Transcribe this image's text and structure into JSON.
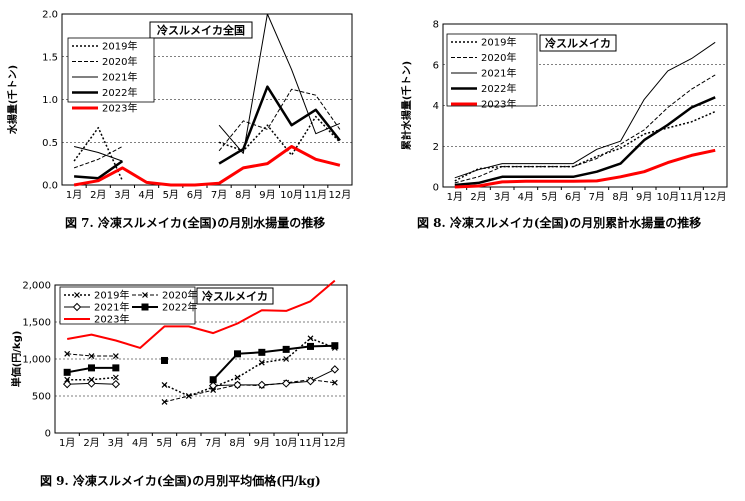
{
  "chart_data": [
    {
      "type": "line",
      "caption": "図 7. 冷凍スルメイカ(全国)の月別水揚量の推移",
      "title": "冷スルメイカ全国",
      "ylabel": "水揚量(千トン)",
      "categories": [
        "1月",
        "2月",
        "3月",
        "4月",
        "5月",
        "6月",
        "7月",
        "8月",
        "9月",
        "10月",
        "11月",
        "12月"
      ],
      "ylim": [
        0,
        2.0
      ],
      "yticks": [
        "0.0",
        "0.5",
        "1.0",
        "1.5",
        "2.0"
      ],
      "ytick_values": [
        0,
        0.5,
        1.0,
        1.5,
        2.0
      ],
      "series": [
        {
          "name": "2019年",
          "values": [
            0.28,
            0.67,
            0.05,
            null,
            null,
            null,
            0.5,
            0.4,
            0.7,
            0.35,
            0.8,
            0.5
          ],
          "color": "#000000",
          "width": 1.5,
          "dash": "2,2"
        },
        {
          "name": "2020年",
          "values": [
            0.2,
            0.3,
            0.45,
            null,
            null,
            null,
            0.4,
            0.75,
            0.65,
            1.12,
            1.05,
            0.65
          ],
          "color": "#000000",
          "width": 1,
          "dash": "4,2"
        },
        {
          "name": "2021年",
          "values": [
            0.45,
            0.38,
            0.28,
            null,
            null,
            null,
            0.7,
            0.37,
            2.0,
            1.35,
            0.6,
            0.72
          ],
          "color": "#000000",
          "width": 1,
          "dash": ""
        },
        {
          "name": "2022年",
          "values": [
            0.1,
            0.08,
            0.28,
            null,
            null,
            null,
            0.25,
            0.42,
            1.15,
            0.7,
            0.88,
            0.52
          ],
          "color": "#000000",
          "width": 2.5,
          "dash": ""
        },
        {
          "name": "2023年",
          "values": [
            0.0,
            0.05,
            0.2,
            0.03,
            0.0,
            0.0,
            0.02,
            0.2,
            0.25,
            0.45,
            0.3,
            0.23
          ],
          "color": "#ff0000",
          "width": 3,
          "dash": ""
        }
      ]
    },
    {
      "type": "line",
      "caption": "図 8. 冷凍スルメイカ(全国)の月別累計水揚量の推移",
      "title": "冷スルメイカ",
      "ylabel": "累計水揚量(千トン)",
      "categories": [
        "1月",
        "2月",
        "3月",
        "4月",
        "5月",
        "6月",
        "7月",
        "8月",
        "9月",
        "10月",
        "11月",
        "12月"
      ],
      "ylim": [
        0,
        8
      ],
      "yticks": [
        "0",
        "2",
        "4",
        "6",
        "8"
      ],
      "ytick_values": [
        0,
        2,
        4,
        6,
        8
      ],
      "series": [
        {
          "name": "2019年",
          "values": [
            0.3,
            0.9,
            1.0,
            1.0,
            1.0,
            1.0,
            1.5,
            1.9,
            2.6,
            2.9,
            3.2,
            3.7
          ],
          "color": "#000000",
          "width": 1.5,
          "dash": "2,2"
        },
        {
          "name": "2020年",
          "values": [
            0.2,
            0.5,
            1.0,
            1.0,
            1.0,
            1.0,
            1.4,
            2.1,
            2.8,
            3.9,
            4.8,
            5.5
          ],
          "color": "#000000",
          "width": 1,
          "dash": "4,2"
        },
        {
          "name": "2021年",
          "values": [
            0.45,
            0.85,
            1.15,
            1.15,
            1.15,
            1.15,
            1.85,
            2.25,
            4.3,
            5.7,
            6.3,
            7.1
          ],
          "color": "#000000",
          "width": 1,
          "dash": ""
        },
        {
          "name": "2022年",
          "values": [
            0.1,
            0.2,
            0.5,
            0.5,
            0.5,
            0.5,
            0.75,
            1.15,
            2.3,
            3.05,
            3.9,
            4.4
          ],
          "color": "#000000",
          "width": 2.5,
          "dash": ""
        },
        {
          "name": "2023年",
          "values": [
            0.0,
            0.05,
            0.25,
            0.28,
            0.28,
            0.28,
            0.3,
            0.5,
            0.75,
            1.2,
            1.55,
            1.8
          ],
          "color": "#ff0000",
          "width": 3,
          "dash": ""
        }
      ]
    },
    {
      "type": "line",
      "caption": "図 9. 冷凍スルメイカ(全国)の月別平均価格(円/kg)",
      "title": "冷スルメイカ",
      "ylabel": "単価(円/kg)",
      "categories": [
        "1月",
        "2月",
        "3月",
        "4月",
        "5月",
        "6月",
        "7月",
        "8月",
        "9月",
        "10月",
        "11月",
        "12月"
      ],
      "ylim": [
        0,
        2000
      ],
      "yticks": [
        "0",
        "500",
        "1,000",
        "1,500",
        "2,000"
      ],
      "ytick_values": [
        0,
        500,
        1000,
        1500,
        2000
      ],
      "series": [
        {
          "name": "2019年",
          "values": [
            720,
            720,
            750,
            null,
            650,
            500,
            620,
            750,
            950,
            1000,
            1280,
            1150
          ],
          "color": "#000000",
          "width": 1.5,
          "dash": "2,2",
          "marker": "x"
        },
        {
          "name": "2020年",
          "values": [
            1070,
            1040,
            1040,
            null,
            420,
            500,
            580,
            650,
            640,
            680,
            720,
            680
          ],
          "color": "#000000",
          "width": 1,
          "dash": "4,2",
          "marker": "x"
        },
        {
          "name": "2021年",
          "values": [
            660,
            670,
            660,
            null,
            null,
            null,
            640,
            650,
            650,
            670,
            700,
            860
          ],
          "color": "#000000",
          "width": 1,
          "dash": "",
          "marker": "diamond"
        },
        {
          "name": "2022年",
          "values": [
            820,
            880,
            880,
            null,
            980,
            null,
            720,
            1070,
            1090,
            1130,
            1170,
            1180
          ],
          "color": "#000000",
          "width": 2,
          "dash": "",
          "marker": "square"
        },
        {
          "name": "2023年",
          "values": [
            1270,
            1330,
            1250,
            1150,
            1440,
            1440,
            1350,
            1480,
            1660,
            1650,
            1780,
            2060
          ],
          "color": "#ff0000",
          "width": 2,
          "dash": "",
          "marker": ""
        }
      ]
    }
  ]
}
